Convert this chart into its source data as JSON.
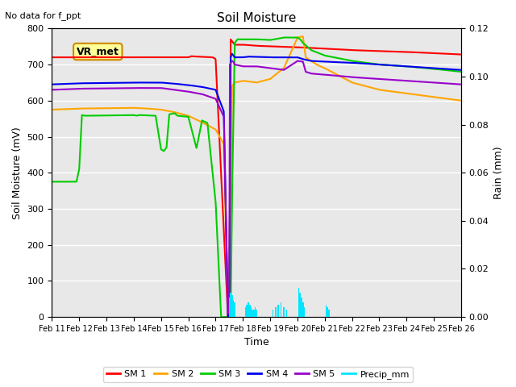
{
  "title": "Soil Moisture",
  "subtitle": "No data for f_ppt",
  "ylabel_left": "Soil Moisture (mV)",
  "ylabel_right": "Rain (mm)",
  "xlabel": "Time",
  "annotation": "VR_met",
  "ylim_left": [
    0,
    800
  ],
  "ylim_right": [
    0,
    0.12
  ],
  "background_color": "#e8e8e8",
  "colors": {
    "SM1": "#ff0000",
    "SM2": "#ffa500",
    "SM3": "#00cc00",
    "SM4": "#0000ee",
    "SM5": "#9900cc",
    "Precip": "#00e5ff"
  },
  "x_tick_labels": [
    "Feb 11",
    "Feb 12",
    "Feb 13",
    "Feb 14",
    "Feb 15",
    "Feb 16",
    "Feb 17",
    "Feb 18",
    "Feb 19",
    "Feb 20",
    "Feb 21",
    "Feb 22",
    "Feb 23",
    "Feb 24",
    "Feb 25",
    "Feb 26"
  ]
}
